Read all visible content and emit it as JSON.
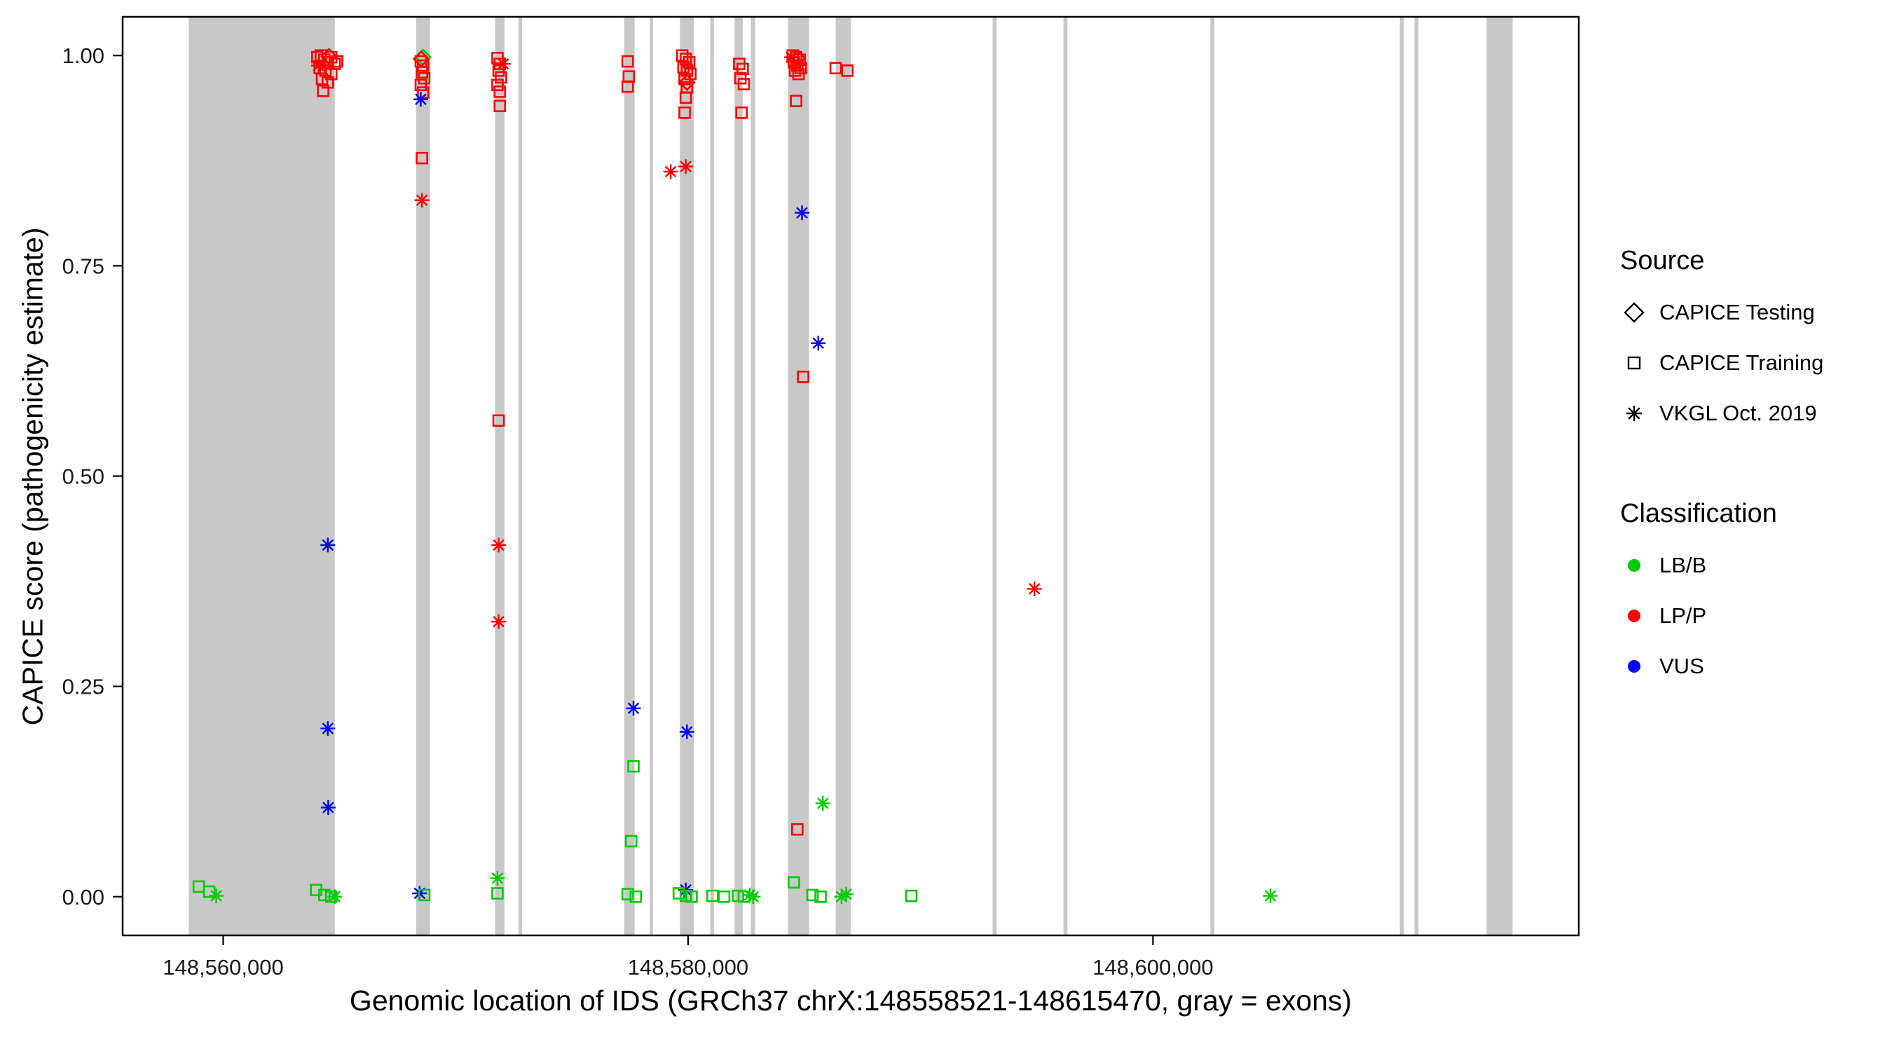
{
  "chart_data": {
    "type": "scatter",
    "title": "",
    "xlabel": "Genomic location of IDS (GRCh37 chrX:148558521-148615470, gray = exons)",
    "ylabel": "CAPICE score (pathogenicity estimate)",
    "xlim": [
      148555674,
      148618317
    ],
    "ylim": [
      -0.046,
      1.046
    ],
    "grid": false,
    "x_ticks": [
      {
        "value": 148560000,
        "label": "148,560,000"
      },
      {
        "value": 148580000,
        "label": "148,580,000"
      },
      {
        "value": 148600000,
        "label": "148,600,000"
      }
    ],
    "y_ticks": [
      {
        "value": 0.0,
        "label": "0.00"
      },
      {
        "value": 0.25,
        "label": "0.25"
      },
      {
        "value": 0.5,
        "label": "0.50"
      },
      {
        "value": 0.75,
        "label": "0.75"
      },
      {
        "value": 1.0,
        "label": "1.00"
      }
    ],
    "exon_color": "#C8C8C8",
    "exons": [
      [
        148558521,
        148564800
      ],
      [
        148568300,
        148568900
      ],
      [
        148571700,
        148572100
      ],
      [
        148572700,
        148572860
      ],
      [
        148577250,
        148577700
      ],
      [
        148578350,
        148578490
      ],
      [
        148579650,
        148580250
      ],
      [
        148580950,
        148581110
      ],
      [
        148582000,
        148582350
      ],
      [
        148582700,
        148582880
      ],
      [
        148584300,
        148585200
      ],
      [
        148586350,
        148587000
      ],
      [
        148593100,
        148593270
      ],
      [
        148596150,
        148596320
      ],
      [
        148602470,
        148602640
      ],
      [
        148610620,
        148610790
      ],
      [
        148611250,
        148611420
      ],
      [
        148614350,
        148615470
      ]
    ],
    "classification_colors": {
      "LB/B": "#00CC00",
      "LP/P": "#FF0000",
      "VUS": "#0000FF"
    },
    "source_shapes": {
      "CAPICE Testing": "diamond",
      "CAPICE Training": "square",
      "VKGL Oct. 2019": "asterisk"
    },
    "points": [
      {
        "x": 148564050,
        "y": 0.998,
        "source": "CAPICE Training",
        "class": "LP/P"
      },
      {
        "x": 148564200,
        "y": 1.0,
        "source": "CAPICE Training",
        "class": "LP/P"
      },
      {
        "x": 148564350,
        "y": 0.995,
        "source": "CAPICE Training",
        "class": "LP/P"
      },
      {
        "x": 148564500,
        "y": 0.992,
        "source": "CAPICE Training",
        "class": "LP/P"
      },
      {
        "x": 148564650,
        "y": 0.998,
        "source": "CAPICE Training",
        "class": "LP/P"
      },
      {
        "x": 148564800,
        "y": 0.99,
        "source": "CAPICE Training",
        "class": "LP/P"
      },
      {
        "x": 148564150,
        "y": 0.985,
        "source": "CAPICE Training",
        "class": "LP/P"
      },
      {
        "x": 148564400,
        "y": 0.982,
        "source": "CAPICE Training",
        "class": "LP/P"
      },
      {
        "x": 148564650,
        "y": 0.978,
        "source": "CAPICE Training",
        "class": "LP/P"
      },
      {
        "x": 148564250,
        "y": 0.972,
        "source": "CAPICE Training",
        "class": "LP/P"
      },
      {
        "x": 148564500,
        "y": 0.968,
        "source": "CAPICE Training",
        "class": "LP/P"
      },
      {
        "x": 148564300,
        "y": 0.958,
        "source": "CAPICE Training",
        "class": "LP/P"
      },
      {
        "x": 148564900,
        "y": 0.993,
        "source": "CAPICE Training",
        "class": "LP/P"
      },
      {
        "x": 148564550,
        "y": 0.999,
        "source": "CAPICE Testing",
        "class": "LP/P"
      },
      {
        "x": 148564100,
        "y": 0.988,
        "source": "VKGL Oct. 2019",
        "class": "LP/P"
      },
      {
        "x": 148564500,
        "y": 0.418,
        "source": "VKGL Oct. 2019",
        "class": "VUS"
      },
      {
        "x": 148564500,
        "y": 0.2,
        "source": "VKGL Oct. 2019",
        "class": "VUS"
      },
      {
        "x": 148564520,
        "y": 0.106,
        "source": "VKGL Oct. 2019",
        "class": "VUS"
      },
      {
        "x": 148558950,
        "y": 0.012,
        "source": "CAPICE Training",
        "class": "LB/B"
      },
      {
        "x": 148559400,
        "y": 0.006,
        "source": "CAPICE Training",
        "class": "LB/B"
      },
      {
        "x": 148559700,
        "y": 0.001,
        "source": "VKGL Oct. 2019",
        "class": "LB/B"
      },
      {
        "x": 148564000,
        "y": 0.008,
        "source": "CAPICE Training",
        "class": "LB/B"
      },
      {
        "x": 148564350,
        "y": 0.002,
        "source": "CAPICE Training",
        "class": "LB/B"
      },
      {
        "x": 148564650,
        "y": 0.0,
        "source": "CAPICE Training",
        "class": "LB/B"
      },
      {
        "x": 148564800,
        "y": 0.0,
        "source": "VKGL Oct. 2019",
        "class": "LB/B"
      },
      {
        "x": 148568600,
        "y": 0.998,
        "source": "CAPICE Testing",
        "class": "LB/B"
      },
      {
        "x": 148568520,
        "y": 0.996,
        "source": "CAPICE Testing",
        "class": "LP/P"
      },
      {
        "x": 148568500,
        "y": 0.993,
        "source": "CAPICE Training",
        "class": "LP/P"
      },
      {
        "x": 148568600,
        "y": 0.988,
        "source": "CAPICE Training",
        "class": "LP/P"
      },
      {
        "x": 148568550,
        "y": 0.98,
        "source": "CAPICE Training",
        "class": "LP/P"
      },
      {
        "x": 148568650,
        "y": 0.973,
        "source": "CAPICE Training",
        "class": "LP/P"
      },
      {
        "x": 148568500,
        "y": 0.965,
        "source": "CAPICE Training",
        "class": "LP/P"
      },
      {
        "x": 148568600,
        "y": 0.956,
        "source": "CAPICE Training",
        "class": "LP/P"
      },
      {
        "x": 148568550,
        "y": 0.878,
        "source": "CAPICE Training",
        "class": "LP/P"
      },
      {
        "x": 148568550,
        "y": 0.828,
        "source": "VKGL Oct. 2019",
        "class": "LP/P"
      },
      {
        "x": 148568500,
        "y": 0.948,
        "source": "VKGL Oct. 2019",
        "class": "VUS"
      },
      {
        "x": 148568450,
        "y": 0.004,
        "source": "VKGL Oct. 2019",
        "class": "VUS"
      },
      {
        "x": 148568650,
        "y": 0.002,
        "source": "CAPICE Training",
        "class": "LB/B"
      },
      {
        "x": 148571800,
        "y": 0.997,
        "source": "CAPICE Training",
        "class": "LP/P"
      },
      {
        "x": 148571900,
        "y": 0.99,
        "source": "CAPICE Training",
        "class": "LP/P"
      },
      {
        "x": 148571850,
        "y": 0.982,
        "source": "CAPICE Training",
        "class": "LP/P"
      },
      {
        "x": 148571950,
        "y": 0.974,
        "source": "CAPICE Training",
        "class": "LP/P"
      },
      {
        "x": 148571800,
        "y": 0.965,
        "source": "CAPICE Training",
        "class": "LP/P"
      },
      {
        "x": 148571900,
        "y": 0.957,
        "source": "CAPICE Training",
        "class": "LP/P"
      },
      {
        "x": 148572050,
        "y": 0.99,
        "source": "VKGL Oct. 2019",
        "class": "LP/P"
      },
      {
        "x": 148571900,
        "y": 0.94,
        "source": "CAPICE Training",
        "class": "LP/P"
      },
      {
        "x": 148571850,
        "y": 0.566,
        "source": "CAPICE Training",
        "class": "LP/P"
      },
      {
        "x": 148571850,
        "y": 0.418,
        "source": "VKGL Oct. 2019",
        "class": "LP/P"
      },
      {
        "x": 148571850,
        "y": 0.327,
        "source": "VKGL Oct. 2019",
        "class": "LP/P"
      },
      {
        "x": 148571800,
        "y": 0.022,
        "source": "VKGL Oct. 2019",
        "class": "LB/B"
      },
      {
        "x": 148571800,
        "y": 0.004,
        "source": "CAPICE Training",
        "class": "LB/B"
      },
      {
        "x": 148577400,
        "y": 0.993,
        "source": "CAPICE Training",
        "class": "LP/P"
      },
      {
        "x": 148577450,
        "y": 0.975,
        "source": "CAPICE Training",
        "class": "LP/P"
      },
      {
        "x": 148577400,
        "y": 0.963,
        "source": "CAPICE Training",
        "class": "LP/P"
      },
      {
        "x": 148577650,
        "y": 0.224,
        "source": "VKGL Oct. 2019",
        "class": "VUS"
      },
      {
        "x": 148577650,
        "y": 0.155,
        "source": "CAPICE Training",
        "class": "LB/B"
      },
      {
        "x": 148577550,
        "y": 0.066,
        "source": "CAPICE Training",
        "class": "LB/B"
      },
      {
        "x": 148577400,
        "y": 0.003,
        "source": "CAPICE Training",
        "class": "LB/B"
      },
      {
        "x": 148577750,
        "y": 0.0,
        "source": "CAPICE Training",
        "class": "LB/B"
      },
      {
        "x": 148579750,
        "y": 1.0,
        "source": "CAPICE Training",
        "class": "LP/P"
      },
      {
        "x": 148579900,
        "y": 0.996,
        "source": "CAPICE Training",
        "class": "LP/P"
      },
      {
        "x": 148580050,
        "y": 0.992,
        "source": "CAPICE Training",
        "class": "LP/P"
      },
      {
        "x": 148579800,
        "y": 0.986,
        "source": "CAPICE Training",
        "class": "LP/P"
      },
      {
        "x": 148579950,
        "y": 0.982,
        "source": "CAPICE Training",
        "class": "LP/P"
      },
      {
        "x": 148580100,
        "y": 0.978,
        "source": "CAPICE Training",
        "class": "LP/P"
      },
      {
        "x": 148579850,
        "y": 0.972,
        "source": "CAPICE Training",
        "class": "LP/P"
      },
      {
        "x": 148579950,
        "y": 0.962,
        "source": "CAPICE Training",
        "class": "LP/P"
      },
      {
        "x": 148579900,
        "y": 0.95,
        "source": "CAPICE Training",
        "class": "LP/P"
      },
      {
        "x": 148579850,
        "y": 0.932,
        "source": "CAPICE Training",
        "class": "LP/P"
      },
      {
        "x": 148579950,
        "y": 0.968,
        "source": "CAPICE Testing",
        "class": "LP/P"
      },
      {
        "x": 148579250,
        "y": 0.862,
        "source": "VKGL Oct. 2019",
        "class": "LP/P"
      },
      {
        "x": 148579900,
        "y": 0.868,
        "source": "VKGL Oct. 2019",
        "class": "LP/P"
      },
      {
        "x": 148579950,
        "y": 0.196,
        "source": "VKGL Oct. 2019",
        "class": "VUS"
      },
      {
        "x": 148579900,
        "y": 0.008,
        "source": "VKGL Oct. 2019",
        "class": "VUS"
      },
      {
        "x": 148579600,
        "y": 0.004,
        "source": "CAPICE Training",
        "class": "LB/B"
      },
      {
        "x": 148579900,
        "y": 0.001,
        "source": "CAPICE Training",
        "class": "LB/B"
      },
      {
        "x": 148580150,
        "y": 0.0,
        "source": "CAPICE Training",
        "class": "LB/B"
      },
      {
        "x": 148581050,
        "y": 0.001,
        "source": "CAPICE Training",
        "class": "LB/B"
      },
      {
        "x": 148581550,
        "y": 0.0,
        "source": "CAPICE Training",
        "class": "LB/B"
      },
      {
        "x": 148582200,
        "y": 0.99,
        "source": "CAPICE Training",
        "class": "LP/P"
      },
      {
        "x": 148582350,
        "y": 0.984,
        "source": "CAPICE Training",
        "class": "LP/P"
      },
      {
        "x": 148582250,
        "y": 0.973,
        "source": "CAPICE Training",
        "class": "LP/P"
      },
      {
        "x": 148582400,
        "y": 0.966,
        "source": "CAPICE Training",
        "class": "LP/P"
      },
      {
        "x": 148582300,
        "y": 0.932,
        "source": "CAPICE Training",
        "class": "LP/P"
      },
      {
        "x": 148582150,
        "y": 0.001,
        "source": "CAPICE Training",
        "class": "LB/B"
      },
      {
        "x": 148582400,
        "y": 0.0,
        "source": "CAPICE Training",
        "class": "LB/B"
      },
      {
        "x": 148582650,
        "y": 0.002,
        "source": "VKGL Oct. 2019",
        "class": "LB/B"
      },
      {
        "x": 148582800,
        "y": 0.0,
        "source": "VKGL Oct. 2019",
        "class": "LB/B"
      },
      {
        "x": 148584500,
        "y": 1.0,
        "source": "CAPICE Training",
        "class": "LP/P"
      },
      {
        "x": 148584650,
        "y": 0.998,
        "source": "CAPICE Training",
        "class": "LP/P"
      },
      {
        "x": 148584800,
        "y": 0.995,
        "source": "CAPICE Training",
        "class": "LP/P"
      },
      {
        "x": 148584550,
        "y": 0.992,
        "source": "CAPICE Training",
        "class": "LP/P"
      },
      {
        "x": 148584700,
        "y": 0.988,
        "source": "CAPICE Training",
        "class": "LP/P"
      },
      {
        "x": 148584850,
        "y": 0.985,
        "source": "CAPICE Training",
        "class": "LP/P"
      },
      {
        "x": 148584600,
        "y": 0.982,
        "source": "CAPICE Training",
        "class": "LP/P"
      },
      {
        "x": 148584750,
        "y": 0.978,
        "source": "CAPICE Training",
        "class": "LP/P"
      },
      {
        "x": 148584700,
        "y": 0.997,
        "source": "CAPICE Testing",
        "class": "LP/P"
      },
      {
        "x": 148584450,
        "y": 0.998,
        "source": "VKGL Oct. 2019",
        "class": "LP/P"
      },
      {
        "x": 148584650,
        "y": 0.946,
        "source": "CAPICE Training",
        "class": "LP/P"
      },
      {
        "x": 148586350,
        "y": 0.985,
        "source": "CAPICE Training",
        "class": "LP/P"
      },
      {
        "x": 148586850,
        "y": 0.982,
        "source": "CAPICE Training",
        "class": "LP/P"
      },
      {
        "x": 148584950,
        "y": 0.618,
        "source": "CAPICE Training",
        "class": "LP/P"
      },
      {
        "x": 148584700,
        "y": 0.08,
        "source": "CAPICE Training",
        "class": "LP/P"
      },
      {
        "x": 148584900,
        "y": 0.813,
        "source": "VKGL Oct. 2019",
        "class": "VUS"
      },
      {
        "x": 148585600,
        "y": 0.658,
        "source": "VKGL Oct. 2019",
        "class": "VUS"
      },
      {
        "x": 148585800,
        "y": 0.111,
        "source": "VKGL Oct. 2019",
        "class": "LB/B"
      },
      {
        "x": 148584550,
        "y": 0.017,
        "source": "CAPICE Training",
        "class": "LB/B"
      },
      {
        "x": 148585350,
        "y": 0.002,
        "source": "CAPICE Training",
        "class": "LB/B"
      },
      {
        "x": 148585700,
        "y": 0.0,
        "source": "CAPICE Training",
        "class": "LB/B"
      },
      {
        "x": 148586600,
        "y": 0.0,
        "source": "VKGL Oct. 2019",
        "class": "LB/B"
      },
      {
        "x": 148586800,
        "y": 0.003,
        "source": "VKGL Oct. 2019",
        "class": "LB/B"
      },
      {
        "x": 148589600,
        "y": 0.001,
        "source": "CAPICE Training",
        "class": "LB/B"
      },
      {
        "x": 148594900,
        "y": 0.366,
        "source": "VKGL Oct. 2019",
        "class": "LP/P"
      },
      {
        "x": 148605050,
        "y": 0.001,
        "source": "VKGL Oct. 2019",
        "class": "LB/B"
      }
    ]
  },
  "legend": {
    "source": {
      "title": "Source",
      "items": [
        {
          "label": "CAPICE Testing",
          "shape": "diamond"
        },
        {
          "label": "CAPICE Training",
          "shape": "square"
        },
        {
          "label": "VKGL Oct. 2019",
          "shape": "asterisk"
        }
      ]
    },
    "classification": {
      "title": "Classification",
      "items": [
        {
          "label": "LB/B",
          "color": "#00CC00"
        },
        {
          "label": "LP/P",
          "color": "#FF0000"
        },
        {
          "label": "VUS",
          "color": "#0000FF"
        }
      ]
    }
  }
}
